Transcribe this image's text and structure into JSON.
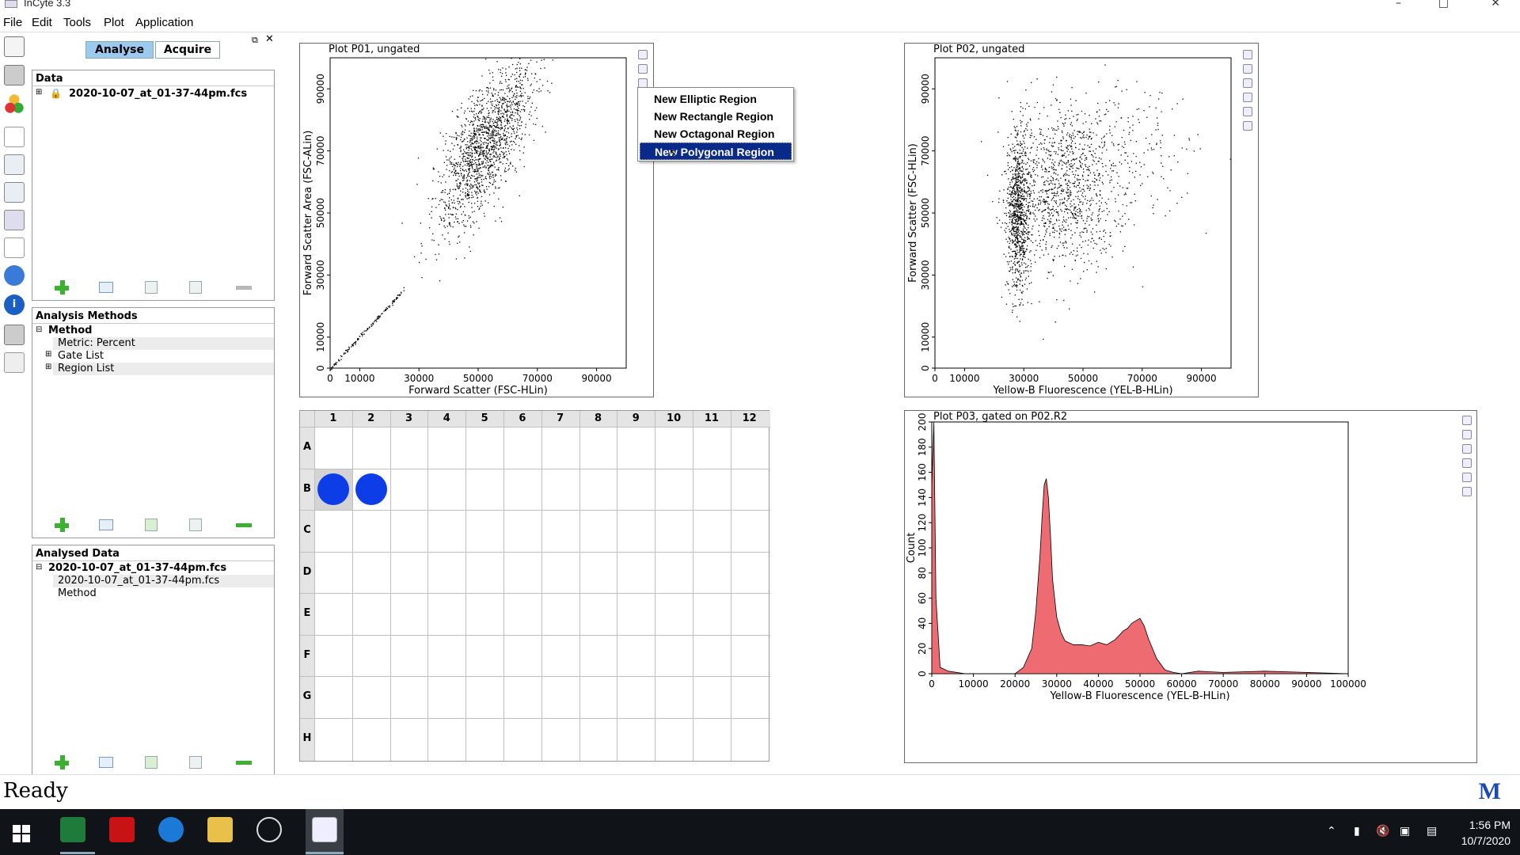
{
  "window": {
    "title": "InCyte 3.3"
  },
  "menubar": [
    "File",
    "Edit",
    "Tools",
    "Plot",
    "Application"
  ],
  "tabs": [
    "Analyse",
    "Acquire"
  ],
  "data_panel": {
    "title": "Data",
    "file": "2020-10-07_at_01-37-44pm.fcs"
  },
  "analysis_methods": {
    "title": "Analysis Methods",
    "items": [
      "Method",
      "Metric: Percent",
      "Gate List",
      "Region List"
    ]
  },
  "analysed_data": {
    "title": "Analysed Data",
    "items": [
      "2020-10-07_at_01-37-44pm.fcs",
      "2020-10-07_at_01-37-44pm.fcs",
      "Method"
    ]
  },
  "context_menu": {
    "items": [
      "New Elliptic Region",
      "New Rectangle Region",
      "New Octagonal Region",
      "New Polygonal Region"
    ],
    "highlighted": "New Polygonal Region"
  },
  "well_plate": {
    "columns": [
      "1",
      "2",
      "3",
      "4",
      "5",
      "6",
      "7",
      "8",
      "9",
      "10",
      "11",
      "12"
    ],
    "rows": [
      "A",
      "B",
      "C",
      "D",
      "E",
      "F",
      "G",
      "H"
    ],
    "filled_wells": [
      "B1",
      "B2"
    ]
  },
  "status": {
    "text": "Ready",
    "logo": "M"
  },
  "taskbar": {
    "time": "1:56 PM",
    "date": "10/7/2020"
  },
  "chart_data": [
    {
      "type": "scatter",
      "title": "Plot P01, ungated",
      "xlabel": "Forward Scatter (FSC-HLin)",
      "ylabel": "Forward Scatter Area (FSC-ALin)",
      "xlim": [
        0,
        100000
      ],
      "ylim": [
        0,
        100000
      ],
      "xticks": [
        "0",
        "10000",
        "30000",
        "50000",
        "70000",
        "90000"
      ],
      "yticks": [
        "0",
        "10000",
        "30000",
        "50000",
        "70000",
        "90000"
      ],
      "series": [
        {
          "clusters": [
            {
              "x": 52000,
              "y": 72000,
              "sx": 8000,
              "sy": 13000,
              "n": 1600,
              "corr": 0.7
            }
          ],
          "diagonal_to": 25000
        }
      ]
    },
    {
      "type": "scatter",
      "title": "Plot P02, ungated",
      "xlabel": "Yellow-B Fluorescence (YEL-B-HLin)",
      "ylabel": "Forward Scatter (FSC-HLin)",
      "xlim": [
        0,
        100000
      ],
      "ylim": [
        0,
        100000
      ],
      "xticks": [
        "0",
        "10000",
        "30000",
        "50000",
        "70000",
        "90000"
      ],
      "yticks": [
        "0",
        "10000",
        "30000",
        "50000",
        "70000",
        "90000"
      ],
      "series": [
        {
          "clusters": [
            {
              "x": 28000,
              "y": 50000,
              "sx": 2000,
              "sy": 12000,
              "n": 900,
              "corr": 0
            },
            {
              "x": 43000,
              "y": 58000,
              "sx": 9000,
              "sy": 13000,
              "n": 1100,
              "corr": 0
            },
            {
              "x": 65000,
              "y": 70000,
              "sx": 13000,
              "sy": 12000,
              "n": 200,
              "corr": 0
            }
          ]
        }
      ]
    },
    {
      "type": "area",
      "title": "Plot P03, gated on P02.R2",
      "xlabel": "Yellow-B Fluorescence (YEL-B-HLin)",
      "ylabel": "Count",
      "xlim": [
        0,
        100000
      ],
      "ylim": [
        0,
        200
      ],
      "xticks": [
        "0",
        "10000",
        "20000",
        "30000",
        "40000",
        "50000",
        "60000",
        "70000",
        "80000",
        "90000",
        "100000"
      ],
      "yticks": [
        "0",
        "20",
        "40",
        "60",
        "80",
        "100",
        "120",
        "140",
        "160",
        "180",
        "200"
      ],
      "x": [
        0,
        500,
        1000,
        2000,
        4000,
        8000,
        15000,
        20000,
        22000,
        24000,
        25000,
        26000,
        26500,
        27000,
        27500,
        28000,
        28500,
        29000,
        30000,
        31000,
        32000,
        34000,
        36000,
        38000,
        40000,
        42000,
        44000,
        46000,
        47000,
        48000,
        49000,
        50000,
        51000,
        52000,
        54000,
        56000,
        58000,
        60000,
        64000,
        70000,
        80000,
        90000,
        100000
      ],
      "values": [
        150,
        200,
        60,
        5,
        2,
        0,
        0,
        0,
        5,
        20,
        50,
        95,
        125,
        150,
        155,
        140,
        110,
        75,
        45,
        33,
        26,
        23,
        23,
        22,
        25,
        23,
        27,
        34,
        36,
        40,
        42,
        44,
        38,
        28,
        12,
        3,
        1,
        0,
        2,
        1,
        2,
        1,
        0
      ]
    }
  ]
}
